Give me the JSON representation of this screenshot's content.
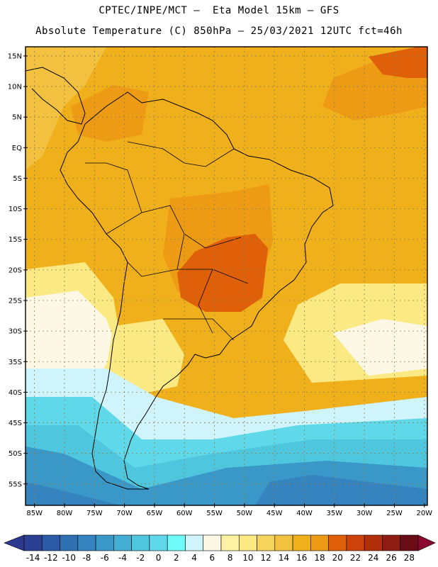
{
  "header": {
    "line1": "CPTEC/INPE/MCT –  Eta Model 15km – GFS",
    "line2": "Absolute Temperature (C) 850hPa – 25/03/2021 12UTC fct=46h"
  },
  "map": {
    "lat_range": [
      -58.5,
      16.5
    ],
    "lon_range": [
      -86.5,
      -19.5
    ],
    "lat_ticks": [
      {
        "value": 15,
        "label": "15N"
      },
      {
        "value": 10,
        "label": "10N"
      },
      {
        "value": 5,
        "label": "5N"
      },
      {
        "value": 0,
        "label": "EQ"
      },
      {
        "value": -5,
        "label": "5S"
      },
      {
        "value": -10,
        "label": "10S"
      },
      {
        "value": -15,
        "label": "15S"
      },
      {
        "value": -20,
        "label": "20S"
      },
      {
        "value": -25,
        "label": "25S"
      },
      {
        "value": -30,
        "label": "30S"
      },
      {
        "value": -35,
        "label": "35S"
      },
      {
        "value": -40,
        "label": "40S"
      },
      {
        "value": -45,
        "label": "45S"
      },
      {
        "value": -50,
        "label": "50S"
      },
      {
        "value": -55,
        "label": "55S"
      }
    ],
    "lon_ticks": [
      {
        "value": -85,
        "label": "85W"
      },
      {
        "value": -80,
        "label": "80W"
      },
      {
        "value": -75,
        "label": "75W"
      },
      {
        "value": -70,
        "label": "70W"
      },
      {
        "value": -65,
        "label": "65W"
      },
      {
        "value": -60,
        "label": "60W"
      },
      {
        "value": -55,
        "label": "55W"
      },
      {
        "value": -50,
        "label": "50W"
      },
      {
        "value": -45,
        "label": "45W"
      },
      {
        "value": -40,
        "label": "40W"
      },
      {
        "value": -35,
        "label": "35W"
      },
      {
        "value": -30,
        "label": "30W"
      },
      {
        "value": -25,
        "label": "25W"
      },
      {
        "value": -20,
        "label": "20W"
      }
    ]
  },
  "colorbar": {
    "labels": [
      "-14",
      "-12",
      "-10",
      "-8",
      "-6",
      "-4",
      "-2",
      "0",
      "2",
      "4",
      "6",
      "8",
      "10",
      "12",
      "14",
      "16",
      "18",
      "20",
      "22",
      "24",
      "26",
      "28"
    ],
    "colors": [
      "#2b3f93",
      "#2a59a6",
      "#2f70b3",
      "#3584c0",
      "#3a98c9",
      "#42aed4",
      "#4ec6de",
      "#5fd9e9",
      "#6efaf8",
      "#cff4fb",
      "#fdf8e6",
      "#fdf2a2",
      "#fbe983",
      "#f6d35b",
      "#f2c13f",
      "#f0b01c",
      "#ed9a14",
      "#e0600a",
      "#cc420a",
      "#b32f0a",
      "#8e1e14",
      "#6b0d16"
    ],
    "under_color": "#2d3990",
    "over_color": "#8c0a2e"
  },
  "field_colors": {
    "cold_deep": "#3584c0",
    "cold_mid": "#3a98c9",
    "cold_light": "#4ec6de",
    "cyan": "#5fd9e9",
    "pale_cyan": "#cff4fb",
    "cream": "#fdf8e6",
    "yellow": "#fbe983",
    "light_orange": "#f2c13f",
    "orange": "#f0b01c",
    "dark_orange": "#ed9a14",
    "red_orange": "#e0600a"
  }
}
